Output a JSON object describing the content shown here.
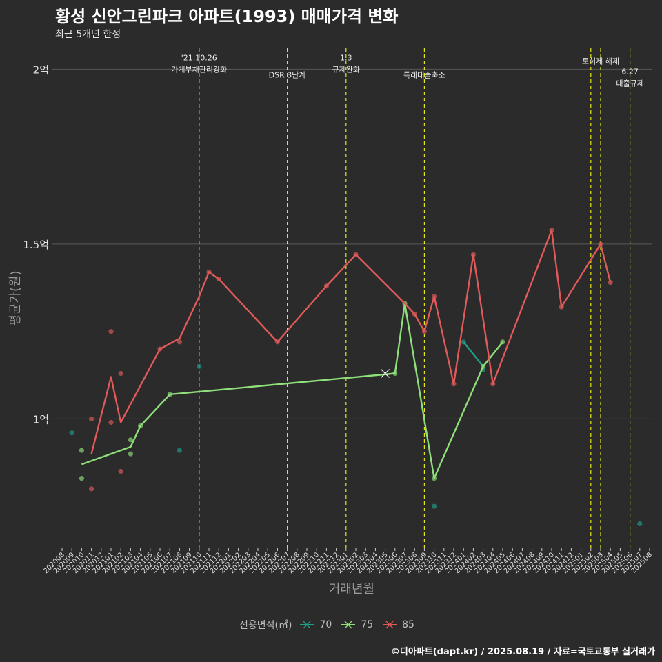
{
  "title": "황성 신안그린파크 아파트(1993) 매매가격 변화",
  "subtitle": "최근 5개년 한정",
  "caption": "©디아파트(dapt.kr) / 2025.08.19 / 자료=국토교통부 실거래가",
  "colors": {
    "background": "#2b2b2b",
    "grid": "#595959",
    "vline": "#e6e619",
    "s70": "#1f9e89",
    "s75": "#8fe07a",
    "s85": "#e05a5a"
  },
  "legend": {
    "title": "전용면적(㎡)",
    "items": [
      "70",
      "75",
      "85"
    ]
  },
  "chart_data": {
    "type": "line",
    "xlabel": "거래년월",
    "ylabel": "평균가(원)",
    "ylim": [
      0.63,
      2.06
    ],
    "y_ticks": [
      {
        "value": 1.0,
        "label": "1억"
      },
      {
        "value": 1.5,
        "label": "1.5억"
      },
      {
        "value": 2.0,
        "label": "2억"
      }
    ],
    "x_ticks": [
      "202008",
      "202009",
      "202010",
      "202011",
      "202012",
      "202101",
      "202102",
      "202103",
      "202104",
      "202105",
      "202106",
      "202107",
      "202108",
      "202109",
      "202110",
      "202111",
      "202112",
      "202201",
      "202202",
      "202203",
      "202204",
      "202205",
      "202206",
      "202207",
      "202208",
      "202209",
      "202210",
      "202211",
      "202212",
      "202301",
      "202302",
      "202303",
      "202304",
      "202305",
      "202306",
      "202307",
      "202308",
      "202309",
      "202310",
      "202311",
      "202312",
      "202401",
      "202402",
      "202403",
      "202404",
      "202405",
      "202406",
      "202407",
      "202408",
      "202409",
      "202410",
      "202411",
      "202412",
      "202501",
      "202502",
      "202503",
      "202504",
      "202505",
      "202506",
      "202507",
      "202508"
    ],
    "grid": true,
    "legend_position": "bottom",
    "events": [
      {
        "x": "202110",
        "label_lines": [
          "'21.10.26",
          "가계부채관리강화"
        ],
        "label_y": 2.01
      },
      {
        "x": "202207",
        "label_lines": [
          "DSR 3단계"
        ],
        "label_y": 1.96
      },
      {
        "x": "202301",
        "label_lines": [
          "1.3",
          "규제완화"
        ],
        "label_y": 2.01
      },
      {
        "x": "202309",
        "label_lines": [
          "특례대출축소"
        ],
        "label_y": 1.96
      },
      {
        "x": "202502",
        "label_lines": [],
        "label_y": 2.0
      },
      {
        "x": "202503",
        "label_lines": [
          "토허제 해제"
        ],
        "label_y": 2.0
      },
      {
        "x": "202506",
        "label_lines": [
          "6.27",
          "대출규제"
        ],
        "label_y": 1.97
      }
    ],
    "series": [
      {
        "name": "70",
        "color": "#1f9e89",
        "line": [
          [
            "202401",
            1.22
          ],
          [
            "202403",
            1.15
          ]
        ],
        "points": [
          [
            "202009",
            0.96
          ],
          [
            "202108",
            0.91
          ],
          [
            "202110",
            1.15
          ],
          [
            "202310",
            0.75
          ],
          [
            "202401",
            1.22
          ],
          [
            "202403",
            1.14
          ],
          [
            "202507",
            0.7
          ]
        ]
      },
      {
        "name": "75",
        "color": "#8fe07a",
        "line": [
          [
            "202010",
            0.87
          ],
          [
            "202103",
            0.92
          ],
          [
            "202104",
            0.98
          ],
          [
            "202107",
            1.07
          ],
          [
            "202306",
            1.13
          ],
          [
            "202307",
            1.33
          ],
          [
            "202310",
            0.83
          ],
          [
            "202403",
            1.15
          ],
          [
            "202405",
            1.22
          ]
        ],
        "points": [
          [
            "202010",
            0.91
          ],
          [
            "202010",
            0.83
          ],
          [
            "202103",
            0.94
          ],
          [
            "202103",
            0.9
          ],
          [
            "202104",
            0.98
          ],
          [
            "202107",
            1.07
          ],
          [
            "202306",
            1.13
          ],
          [
            "202307",
            1.33
          ],
          [
            "202310",
            0.83
          ],
          [
            "202403",
            1.15
          ],
          [
            "202405",
            1.22
          ]
        ],
        "cross": [
          [
            "202305",
            1.13
          ]
        ]
      },
      {
        "name": "85",
        "color": "#e05a5a",
        "line": [
          [
            "202011",
            0.9
          ],
          [
            "202101",
            1.12
          ],
          [
            "202102",
            0.99
          ],
          [
            "202106",
            1.2
          ],
          [
            "202108",
            1.23
          ],
          [
            "202110",
            1.35
          ],
          [
            "202111",
            1.42
          ],
          [
            "202112",
            1.4
          ],
          [
            "202206",
            1.22
          ],
          [
            "202211",
            1.38
          ],
          [
            "202302",
            1.47
          ],
          [
            "202307",
            1.33
          ],
          [
            "202308",
            1.3
          ],
          [
            "202309",
            1.25
          ],
          [
            "202310",
            1.35
          ],
          [
            "202312",
            1.1
          ],
          [
            "202402",
            1.47
          ],
          [
            "202404",
            1.1
          ],
          [
            "202410",
            1.54
          ],
          [
            "202411",
            1.32
          ],
          [
            "202503",
            1.5
          ],
          [
            "202504",
            1.39
          ]
        ],
        "points": [
          [
            "202011",
            1.0
          ],
          [
            "202011",
            0.8
          ],
          [
            "202101",
            1.25
          ],
          [
            "202101",
            0.99
          ],
          [
            "202102",
            1.13
          ],
          [
            "202102",
            0.85
          ],
          [
            "202106",
            1.2
          ],
          [
            "202108",
            1.22
          ],
          [
            "202111",
            1.42
          ],
          [
            "202112",
            1.4
          ],
          [
            "202206",
            1.22
          ],
          [
            "202211",
            1.38
          ],
          [
            "202302",
            1.47
          ],
          [
            "202308",
            1.3
          ],
          [
            "202309",
            1.25
          ],
          [
            "202310",
            1.35
          ],
          [
            "202312",
            1.1
          ],
          [
            "202402",
            1.47
          ],
          [
            "202404",
            1.1
          ],
          [
            "202410",
            1.54
          ],
          [
            "202411",
            1.32
          ],
          [
            "202503",
            1.5
          ],
          [
            "202504",
            1.39
          ]
        ]
      }
    ]
  }
}
